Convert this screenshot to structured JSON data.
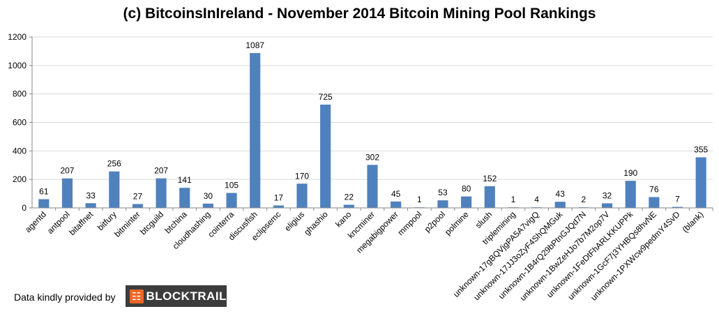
{
  "chart_data": {
    "type": "bar",
    "title": "(c) BitcoinsInIreland - November 2014 Bitcoin Mining Pool Rankings",
    "categories": [
      "agentd",
      "antpool",
      "bitaffnet",
      "bitfury",
      "bitminter",
      "btcguild",
      "btchina",
      "cloudhashing",
      "cointerra",
      "discusfish",
      "eclipsemc",
      "eligius",
      "ghashio",
      "kano",
      "kncminer",
      "megabigpower",
      "mmpool",
      "p2pool",
      "polmine",
      "slush",
      "triplemining",
      "unknown-17gBQVjgPA5A7vigQ",
      "unknown-17JJ3oZyF4ShQMGuk",
      "unknown-1B4rQ29bPtnGJQd7N",
      "unknown-1BwZeHJo7b7M2op7V",
      "unknown-1FeDtFhARLKKUPPk",
      "unknown-1GcF7j3YHBQs8hvNE",
      "unknown-1PXWcw9pedmY4SvD",
      "(blank)"
    ],
    "values": [
      61,
      207,
      33,
      256,
      27,
      207,
      141,
      30,
      105,
      1087,
      17,
      170,
      725,
      22,
      302,
      45,
      1,
      53,
      80,
      152,
      1,
      4,
      43,
      2,
      32,
      190,
      76,
      7,
      355
    ],
    "ylim": [
      0,
      1200
    ],
    "yticks": [
      0,
      200,
      400,
      600,
      800,
      1000,
      1200
    ],
    "grid": true,
    "legend": "none",
    "bar_color": "#4f81bd"
  },
  "footer": {
    "credit_text": "Data kindly provided by",
    "logo_text": "BLOCKTRAIL",
    "logo_icon": "blocktrail-logo-icon"
  },
  "colors": {
    "grid": "#d9d9d9",
    "axis": "#868686",
    "logo_bg": "#3c3c3c",
    "logo_accent": "#f26522"
  }
}
